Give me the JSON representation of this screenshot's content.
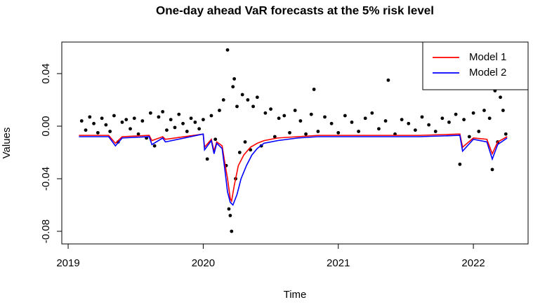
{
  "chart_data": {
    "type": "line",
    "title": "One-day ahead VaR forecasts at the 5% risk level",
    "x_label": "Time",
    "y_label": "Values",
    "xlim": [
      2018.953,
      2022.405
    ],
    "ylim": [
      -0.0896,
      0.064
    ],
    "xticks": [
      2019,
      2020,
      2021,
      2022
    ],
    "yticks": [
      -0.08,
      -0.04,
      {
        "value": 0,
        "label": "0.00"
      },
      0.04
    ],
    "legend": "top-right",
    "series": [
      {
        "type": "scatter",
        "color": "#000000",
        "x": [
          2019.1,
          2019.13,
          2019.16,
          2019.19,
          2019.22,
          2019.25,
          2019.28,
          2019.31,
          2019.34,
          2019.37,
          2019.4,
          2019.43,
          2019.46,
          2019.49,
          2019.52,
          2019.55,
          2019.58,
          2019.61,
          2019.64,
          2019.67,
          2019.7,
          2019.73,
          2019.76,
          2019.79,
          2019.82,
          2019.85,
          2019.88,
          2019.91,
          2019.94,
          2019.97,
          2020.0,
          2020.03,
          2020.06,
          2020.09,
          2020.12,
          2020.15,
          2020.17,
          2020.18,
          2020.19,
          2020.2,
          2020.21,
          2020.22,
          2020.23,
          2020.24,
          2020.25,
          2020.27,
          2020.29,
          2020.31,
          2020.33,
          2020.35,
          2020.37,
          2020.4,
          2020.43,
          2020.46,
          2020.5,
          2020.53,
          2020.56,
          2020.6,
          2020.64,
          2020.68,
          2020.72,
          2020.76,
          2020.8,
          2020.82,
          2020.85,
          2020.9,
          2020.95,
          2021.0,
          2021.05,
          2021.1,
          2021.15,
          2021.2,
          2021.25,
          2021.3,
          2021.35,
          2021.37,
          2021.42,
          2021.47,
          2021.52,
          2021.57,
          2021.62,
          2021.67,
          2021.72,
          2021.77,
          2021.82,
          2021.87,
          2021.9,
          2021.93,
          2021.97,
          2022.0,
          2022.04,
          2022.08,
          2022.12,
          2022.14,
          2022.16,
          2022.18,
          2022.2,
          2022.22,
          2022.24
        ],
        "values": [
          0.004,
          -0.003,
          0.007,
          0.002,
          -0.005,
          0.006,
          0.001,
          -0.004,
          0.008,
          -0.012,
          0.003,
          0.005,
          -0.002,
          0.006,
          -0.006,
          0.004,
          -0.009,
          0.01,
          -0.015,
          0.007,
          0.011,
          -0.003,
          0.005,
          -0.001,
          0.009,
          0.002,
          -0.004,
          0.006,
          0.003,
          -0.002,
          0.005,
          -0.025,
          0.008,
          -0.01,
          0.012,
          0.02,
          -0.03,
          0.058,
          -0.063,
          -0.068,
          -0.08,
          0.03,
          0.036,
          -0.04,
          0.015,
          -0.02,
          0.024,
          -0.012,
          0.02,
          -0.018,
          0.015,
          0.022,
          -0.015,
          0.01,
          0.013,
          -0.008,
          0.006,
          0.008,
          -0.005,
          0.012,
          0.004,
          -0.006,
          0.009,
          0.028,
          -0.004,
          0.007,
          0.002,
          -0.005,
          0.008,
          0.003,
          -0.004,
          0.006,
          0.01,
          -0.002,
          0.004,
          0.035,
          -0.006,
          0.005,
          0.002,
          -0.003,
          0.007,
          0.001,
          -0.004,
          0.006,
          0.003,
          0.009,
          -0.029,
          0.005,
          -0.008,
          0.01,
          -0.004,
          0.012,
          0.006,
          -0.033,
          0.027,
          -0.012,
          0.022,
          0.012,
          -0.006
        ]
      },
      {
        "type": "line",
        "name": "Model 1",
        "color": "#ff0000",
        "x": [
          2019.08,
          2019.3,
          2019.35,
          2019.4,
          2019.6,
          2019.62,
          2019.7,
          2019.72,
          2020.0,
          2020.01,
          2020.06,
          2020.08,
          2020.1,
          2020.14,
          2020.16,
          2020.18,
          2020.2,
          2020.21,
          2020.23,
          2020.26,
          2020.3,
          2020.35,
          2020.4,
          2020.45,
          2020.55,
          2020.7,
          2020.85,
          2021.0,
          2021.3,
          2021.6,
          2021.9,
          2021.92,
          2022.0,
          2022.1,
          2022.14,
          2022.18,
          2022.25
        ],
        "values": [
          -0.007,
          -0.007,
          -0.013,
          -0.008,
          -0.007,
          -0.011,
          -0.008,
          -0.01,
          -0.006,
          -0.016,
          -0.01,
          -0.019,
          -0.012,
          -0.015,
          -0.028,
          -0.04,
          -0.055,
          -0.057,
          -0.045,
          -0.03,
          -0.022,
          -0.016,
          -0.013,
          -0.011,
          -0.009,
          -0.008,
          -0.007,
          -0.007,
          -0.007,
          -0.007,
          -0.006,
          -0.016,
          -0.009,
          -0.01,
          -0.021,
          -0.012,
          -0.008
        ]
      },
      {
        "type": "line",
        "name": "Model 2",
        "color": "#0000ff",
        "x": [
          2019.08,
          2019.3,
          2019.35,
          2019.4,
          2019.6,
          2019.62,
          2019.7,
          2019.72,
          2020.0,
          2020.01,
          2020.06,
          2020.08,
          2020.1,
          2020.14,
          2020.16,
          2020.18,
          2020.2,
          2020.22,
          2020.25,
          2020.28,
          2020.32,
          2020.36,
          2020.4,
          2020.45,
          2020.55,
          2020.7,
          2020.85,
          2021.0,
          2021.3,
          2021.6,
          2021.9,
          2021.92,
          2022.0,
          2022.1,
          2022.14,
          2022.18,
          2022.25
        ],
        "values": [
          -0.008,
          -0.008,
          -0.015,
          -0.009,
          -0.008,
          -0.014,
          -0.009,
          -0.012,
          -0.006,
          -0.018,
          -0.011,
          -0.021,
          -0.013,
          -0.017,
          -0.033,
          -0.05,
          -0.058,
          -0.06,
          -0.052,
          -0.04,
          -0.03,
          -0.022,
          -0.017,
          -0.013,
          -0.011,
          -0.009,
          -0.008,
          -0.008,
          -0.008,
          -0.008,
          -0.007,
          -0.019,
          -0.01,
          -0.012,
          -0.025,
          -0.014,
          -0.009
        ]
      }
    ]
  }
}
